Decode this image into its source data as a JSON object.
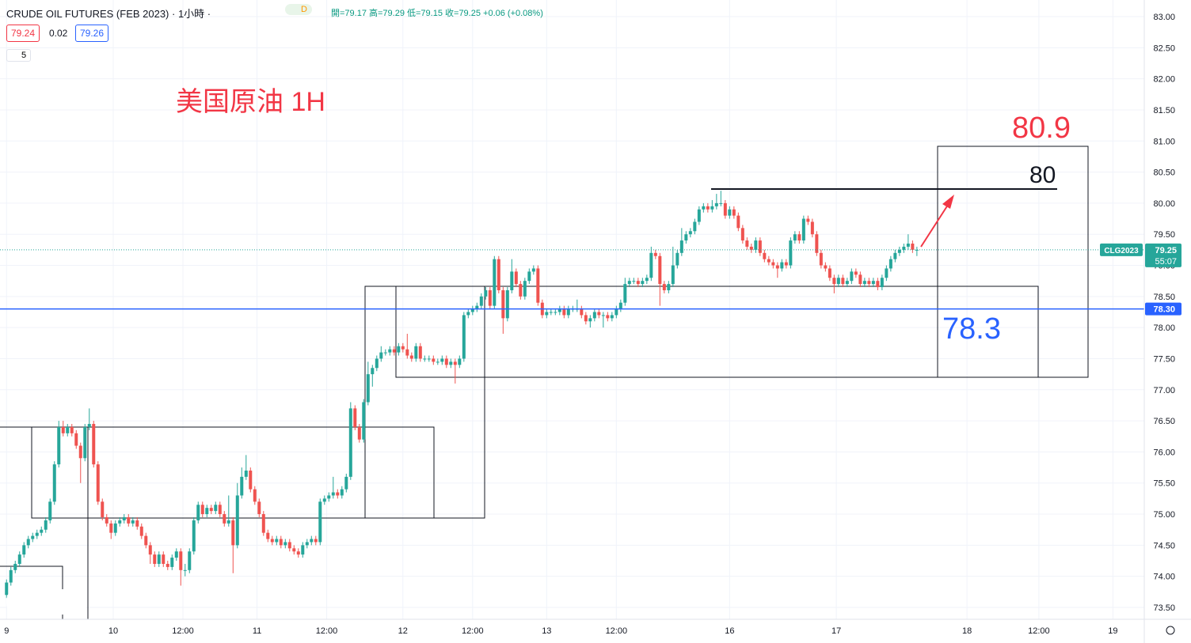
{
  "header": {
    "symbol": "CRUDE OIL FUTURES (FEB 2023) · 1小時 ·",
    "badge": "D",
    "ohlc": "開=79.17 高=79.29 低=79.15 收=79.25 +0.06 (+0.08%)",
    "bid": "79.24",
    "spread": "0.02",
    "ask": "79.26",
    "indicators": "5"
  },
  "chart_data": {
    "type": "candlestick",
    "annotations": {
      "title": "美国原油 1H",
      "target": "80.9",
      "resistance": "80",
      "support": "78.3"
    },
    "up_color": "#26a69a",
    "down_color": "#ef5350",
    "xlim": [
      -1.5,
      261.2
    ],
    "xticks": [
      {
        "value": 0,
        "label": "9"
      },
      {
        "value": 24.5,
        "label": "10"
      },
      {
        "value": 40.5,
        "label": "12:00"
      },
      {
        "value": 57.5,
        "label": "11"
      },
      {
        "value": 73.5,
        "label": "12:00"
      },
      {
        "value": 91,
        "label": "12"
      },
      {
        "value": 107,
        "label": "12:00"
      },
      {
        "value": 124,
        "label": "13"
      },
      {
        "value": 140,
        "label": "12:00"
      },
      {
        "value": 166,
        "label": "16"
      },
      {
        "value": 190.5,
        "label": "17"
      },
      {
        "value": 220.5,
        "label": "18"
      },
      {
        "value": 237,
        "label": "12:00"
      },
      {
        "value": 254,
        "label": "19"
      }
    ],
    "ylim": [
      73.5,
      83
    ],
    "yticks": [
      {
        "value": 73.5,
        "label": "73.50"
      },
      {
        "value": 74,
        "label": "74.00"
      },
      {
        "value": 74.5,
        "label": "74.50"
      },
      {
        "value": 75,
        "label": "75.00"
      },
      {
        "value": 75.5,
        "label": "75.50"
      },
      {
        "value": 76,
        "label": "76.00"
      },
      {
        "value": 76.5,
        "label": "76.50"
      },
      {
        "value": 77,
        "label": "77.00"
      },
      {
        "value": 77.5,
        "label": "77.50"
      },
      {
        "value": 78,
        "label": "78.00"
      },
      {
        "value": 78.5,
        "label": "78.50"
      },
      {
        "value": 79,
        "label": "79.00"
      },
      {
        "value": 79.5,
        "label": "79.50"
      },
      {
        "value": 80,
        "label": "80.00"
      },
      {
        "value": 80.5,
        "label": "80.50"
      },
      {
        "value": 81,
        "label": "81.00"
      },
      {
        "value": 81.5,
        "label": "81.50"
      },
      {
        "value": 82,
        "label": "82.00"
      },
      {
        "value": 82.5,
        "label": "82.50"
      },
      {
        "value": 83,
        "label": "83.00"
      }
    ],
    "grid": true,
    "level": {
      "value": 78.3,
      "label": "78.30"
    },
    "level_color": "#2962ff",
    "last_price": 79.25,
    "countdown": "55:07",
    "ticker": "CLG2023",
    "open": [
      73.7,
      73.9,
      74.1,
      74.2,
      74.35,
      74.5,
      74.6,
      74.65,
      74.7,
      74.75,
      74.9,
      75.2,
      75.8,
      76.4,
      76.3,
      76.4,
      76.3,
      76.1,
      75.9,
      76.4,
      76.45,
      75.8,
      75.2,
      74.95,
      74.85,
      74.7,
      74.85,
      74.9,
      74.95,
      74.85,
      74.9,
      74.8,
      74.65,
      74.5,
      74.35,
      74.2,
      74.35,
      74.2,
      74.15,
      74.3,
      74.4,
      74.1,
      74.1,
      74.4,
      74.9,
      75.15,
      75.0,
      75.1,
      75.05,
      75.15,
      75.0,
      74.85,
      74.9,
      74.5,
      75.3,
      75.6,
      75.7,
      75.4,
      75.2,
      75.0,
      74.7,
      74.6,
      74.55,
      74.6,
      74.5,
      74.55,
      74.45,
      74.4,
      74.35,
      74.5,
      74.55,
      74.6,
      74.55,
      75.2,
      75.25,
      75.3,
      75.35,
      75.3,
      75.4,
      75.6,
      76.7,
      76.4,
      76.2,
      76.8,
      77.25,
      77.35,
      77.5,
      77.6,
      77.6,
      77.65,
      77.6,
      77.7,
      77.65,
      77.55,
      77.5,
      77.7,
      77.5,
      77.5,
      77.5,
      77.45,
      77.45,
      77.5,
      77.4,
      77.45,
      77.4,
      77.5,
      78.2,
      78.25,
      78.3,
      78.35,
      78.5,
      78.6,
      78.35,
      79.1,
      78.6,
      78.15,
      78.6,
      78.9,
      78.7,
      78.5,
      78.75,
      78.9,
      78.95,
      78.4,
      78.2,
      78.25,
      78.25,
      78.25,
      78.3,
      78.2,
      78.3,
      78.3,
      78.3,
      78.2,
      78.1,
      78.15,
      78.25,
      78.2,
      78.2,
      78.15,
      78.2,
      78.3,
      78.4,
      78.7,
      78.75,
      78.75,
      78.7,
      78.75,
      78.8,
      79.2,
      79.15,
      78.7,
      78.6,
      78.7,
      79.0,
      79.2,
      79.4,
      79.5,
      79.55,
      79.7,
      79.9,
      79.95,
      79.9,
      79.95,
      80.0,
      80.0,
      79.8,
      79.9,
      79.8,
      79.6,
      79.4,
      79.3,
      79.25,
      79.4,
      79.2,
      79.1,
      79.05,
      79.0,
      78.95,
      79.05,
      79.0,
      79.4,
      79.5,
      79.4,
      79.75,
      79.7,
      79.5,
      79.2,
      79.0,
      78.95,
      78.8,
      78.7,
      78.8,
      78.7,
      78.75,
      78.9,
      78.85,
      78.7,
      78.75,
      78.7,
      78.75,
      78.65,
      78.8,
      78.95,
      79.1,
      79.2,
      79.25,
      79.3,
      79.35,
      79.25
    ],
    "high": [
      73.95,
      74.15,
      74.25,
      74.4,
      74.55,
      74.65,
      74.7,
      74.75,
      74.8,
      74.95,
      75.25,
      75.85,
      76.5,
      76.5,
      76.45,
      76.45,
      76.35,
      76.15,
      76.45,
      76.7,
      76.5,
      75.85,
      75.25,
      75.0,
      74.9,
      74.9,
      74.95,
      75.0,
      75.0,
      74.95,
      74.95,
      74.85,
      74.7,
      74.55,
      74.4,
      74.4,
      74.4,
      74.25,
      74.35,
      74.45,
      74.45,
      74.2,
      74.45,
      74.95,
      75.2,
      75.2,
      75.15,
      75.15,
      75.2,
      75.2,
      75.05,
      75.3,
      74.95,
      75.5,
      75.75,
      75.95,
      75.75,
      75.45,
      75.25,
      75.05,
      74.75,
      74.65,
      74.65,
      74.65,
      74.6,
      74.6,
      74.5,
      74.45,
      74.55,
      74.6,
      74.65,
      74.65,
      75.25,
      75.3,
      75.35,
      75.6,
      75.4,
      75.45,
      75.65,
      76.8,
      76.75,
      76.45,
      76.85,
      77.45,
      77.4,
      77.55,
      77.7,
      77.65,
      77.7,
      77.7,
      77.75,
      77.75,
      77.9,
      77.6,
      77.75,
      77.75,
      77.55,
      77.55,
      77.55,
      77.5,
      77.55,
      77.55,
      77.5,
      77.5,
      77.55,
      78.25,
      78.3,
      78.35,
      78.4,
      78.55,
      78.65,
      78.65,
      79.15,
      79.15,
      78.65,
      78.65,
      79.1,
      78.95,
      78.75,
      78.8,
      78.95,
      79.0,
      79.0,
      78.45,
      78.3,
      78.3,
      78.3,
      78.35,
      78.35,
      78.35,
      78.35,
      78.45,
      78.35,
      78.25,
      78.2,
      78.3,
      78.3,
      78.25,
      78.25,
      78.25,
      78.35,
      78.45,
      78.8,
      78.8,
      78.8,
      78.8,
      78.8,
      78.85,
      79.3,
      79.25,
      79.2,
      78.75,
      78.75,
      79.3,
      79.25,
      79.6,
      79.55,
      79.6,
      79.75,
      79.95,
      80.0,
      80.0,
      80.05,
      80.15,
      80.2,
      80.05,
      79.95,
      79.95,
      79.85,
      79.65,
      79.45,
      79.35,
      79.45,
      79.45,
      79.25,
      79.15,
      79.1,
      79.05,
      79.1,
      79.1,
      79.45,
      79.55,
      79.55,
      79.8,
      79.8,
      79.75,
      79.55,
      79.25,
      79.05,
      79.0,
      78.85,
      78.85,
      78.85,
      78.8,
      78.95,
      78.95,
      78.9,
      78.8,
      78.8,
      78.8,
      78.8,
      78.85,
      79.0,
      79.15,
      79.25,
      79.3,
      79.35,
      79.5,
      79.4,
      79.3
    ],
    "low": [
      73.65,
      73.85,
      74.05,
      74.15,
      74.3,
      74.45,
      74.55,
      74.6,
      74.65,
      74.7,
      74.85,
      75.15,
      75.75,
      76.25,
      76.25,
      76.25,
      76.05,
      75.5,
      75.85,
      76.35,
      75.75,
      75.15,
      74.9,
      74.8,
      74.6,
      74.65,
      74.8,
      74.85,
      74.8,
      74.8,
      74.75,
      74.6,
      74.45,
      74.2,
      74.15,
      74.15,
      74.15,
      74.1,
      74.1,
      74.25,
      73.85,
      74.0,
      74.05,
      74.35,
      74.85,
      74.95,
      74.95,
      75.0,
      75.0,
      74.95,
      74.8,
      74.8,
      74.05,
      74.45,
      75.25,
      75.55,
      75.35,
      75.15,
      74.95,
      74.65,
      74.55,
      74.5,
      74.5,
      74.45,
      74.45,
      74.4,
      74.35,
      74.3,
      74.3,
      74.45,
      74.5,
      74.5,
      74.5,
      75.15,
      75.2,
      75.25,
      75.25,
      75.25,
      75.35,
      75.55,
      76.35,
      76.15,
      76.15,
      76.75,
      77.05,
      77.3,
      77.45,
      77.55,
      77.55,
      77.55,
      77.55,
      77.6,
      77.5,
      77.45,
      77.45,
      77.45,
      77.45,
      77.45,
      77.4,
      77.4,
      77.4,
      77.35,
      77.35,
      77.1,
      77.35,
      77.45,
      78.15,
      78.2,
      78.25,
      78.3,
      78.45,
      78.3,
      78.3,
      78.55,
      77.9,
      78.1,
      78.55,
      78.65,
      78.45,
      78.45,
      78.7,
      78.85,
      78.35,
      78.15,
      78.15,
      78.2,
      78.2,
      78.2,
      78.15,
      78.15,
      78.25,
      78.25,
      78.15,
      78.05,
      78.0,
      78.1,
      78.15,
      78.0,
      78.1,
      78.1,
      78.15,
      78.25,
      78.35,
      78.65,
      78.7,
      78.65,
      78.65,
      78.7,
      78.75,
      79.1,
      78.35,
      78.55,
      78.55,
      78.65,
      78.95,
      79.15,
      79.35,
      79.45,
      79.5,
      79.65,
      79.85,
      79.85,
      79.85,
      79.9,
      79.95,
      79.75,
      79.75,
      79.75,
      79.55,
      79.35,
      79.25,
      79.2,
      79.2,
      79.15,
      79.05,
      79.0,
      78.95,
      78.8,
      78.9,
      78.95,
      78.95,
      79.35,
      79.35,
      79.35,
      79.65,
      79.45,
      79.15,
      78.95,
      78.9,
      78.75,
      78.55,
      78.65,
      78.65,
      78.65,
      78.7,
      78.8,
      78.65,
      78.65,
      78.65,
      78.65,
      78.6,
      78.6,
      78.75,
      78.9,
      79.05,
      79.15,
      79.2,
      79.25,
      79.2,
      79.15
    ],
    "close": [
      73.9,
      74.1,
      74.2,
      74.35,
      74.5,
      74.6,
      74.65,
      74.7,
      74.75,
      74.9,
      75.2,
      75.8,
      76.4,
      76.3,
      76.4,
      76.3,
      76.1,
      75.9,
      76.4,
      76.45,
      75.8,
      75.2,
      74.95,
      74.85,
      74.7,
      74.85,
      74.9,
      74.95,
      74.85,
      74.9,
      74.8,
      74.65,
      74.5,
      74.35,
      74.2,
      74.35,
      74.2,
      74.15,
      74.3,
      74.4,
      74.1,
      74.1,
      74.4,
      74.9,
      75.15,
      75.0,
      75.1,
      75.05,
      75.15,
      75.0,
      74.85,
      74.9,
      74.5,
      75.3,
      75.6,
      75.7,
      75.4,
      75.2,
      75.0,
      74.7,
      74.6,
      74.55,
      74.6,
      74.5,
      74.55,
      74.45,
      74.4,
      74.35,
      74.5,
      74.55,
      74.6,
      74.55,
      75.2,
      75.25,
      75.3,
      75.35,
      75.3,
      75.4,
      75.6,
      76.7,
      76.4,
      76.2,
      76.8,
      77.25,
      77.35,
      77.5,
      77.6,
      77.6,
      77.65,
      77.6,
      77.7,
      77.65,
      77.55,
      77.5,
      77.7,
      77.5,
      77.5,
      77.5,
      77.45,
      77.45,
      77.5,
      77.4,
      77.45,
      77.4,
      77.5,
      78.2,
      78.25,
      78.3,
      78.35,
      78.5,
      78.6,
      78.35,
      79.1,
      78.6,
      78.15,
      78.6,
      78.9,
      78.7,
      78.5,
      78.75,
      78.9,
      78.95,
      78.4,
      78.2,
      78.25,
      78.25,
      78.25,
      78.3,
      78.2,
      78.3,
      78.3,
      78.3,
      78.2,
      78.1,
      78.15,
      78.25,
      78.2,
      78.2,
      78.15,
      78.2,
      78.3,
      78.4,
      78.7,
      78.75,
      78.75,
      78.7,
      78.75,
      78.8,
      79.2,
      79.15,
      78.7,
      78.6,
      78.7,
      79.0,
      79.2,
      79.4,
      79.5,
      79.55,
      79.7,
      79.9,
      79.95,
      79.9,
      79.95,
      80.0,
      80.0,
      79.8,
      79.9,
      79.8,
      79.6,
      79.4,
      79.3,
      79.25,
      79.4,
      79.2,
      79.1,
      79.05,
      79.0,
      78.95,
      79.05,
      79.0,
      79.4,
      79.5,
      79.4,
      79.75,
      79.7,
      79.5,
      79.2,
      79.0,
      78.95,
      78.8,
      78.7,
      78.8,
      78.7,
      78.75,
      78.9,
      78.85,
      78.7,
      78.75,
      78.7,
      78.75,
      78.65,
      78.8,
      78.95,
      79.1,
      79.2,
      79.25,
      79.3,
      79.35,
      79.25,
      79.25
    ]
  }
}
